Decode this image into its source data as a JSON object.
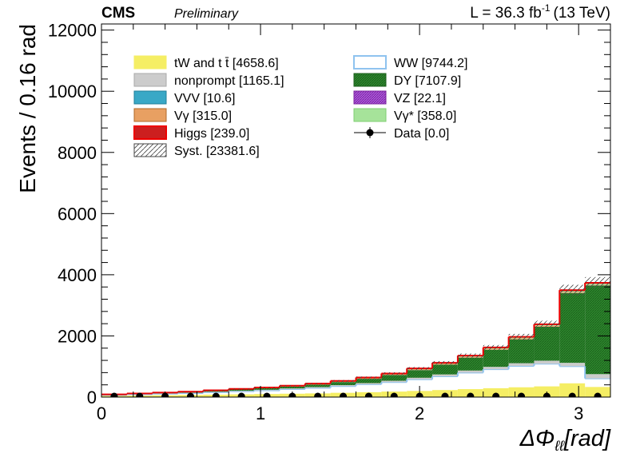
{
  "header": {
    "experiment": "CMS",
    "status": "Preliminary",
    "lumi_text": "L = 36.3 fb",
    "lumi_sup": "-1",
    "energy": "(13 TeV)"
  },
  "chart_data": {
    "type": "stacked-histogram",
    "xlabel_main": "ΔΦ",
    "xlabel_sub": "ℓℓ",
    "xlabel_unit": "[rad]",
    "ylabel": "Events / 0.16 rad",
    "xlim": [
      0,
      3.2
    ],
    "ylim": [
      0,
      12200
    ],
    "xticks": [
      0,
      1,
      2,
      3
    ],
    "yticks": [
      0,
      2000,
      4000,
      6000,
      8000,
      10000,
      12000
    ],
    "bin_edges": [
      0,
      0.16,
      0.32,
      0.48,
      0.64,
      0.8,
      0.96,
      1.12,
      1.28,
      1.44,
      1.6,
      1.76,
      1.92,
      2.08,
      2.24,
      2.4,
      2.56,
      2.72,
      2.88,
      3.04,
      3.2
    ],
    "series": [
      {
        "name": "tW and t t̄ [4658.6]",
        "key": "top",
        "fill": "#f5ee64",
        "stroke": "#f5ee64",
        "pattern": "none",
        "values": [
          40,
          50,
          60,
          70,
          80,
          90,
          100,
          110,
          120,
          140,
          160,
          180,
          200,
          230,
          260,
          290,
          320,
          350,
          450,
          330
        ]
      },
      {
        "name": "WW [9744.2]",
        "key": "ww",
        "fill": "none",
        "stroke": "#8fc3ef",
        "pattern": "none",
        "values": [
          30,
          40,
          50,
          60,
          80,
          100,
          120,
          150,
          180,
          220,
          260,
          310,
          380,
          450,
          540,
          620,
          700,
          740,
          560,
          280
        ]
      },
      {
        "name": "nonprompt [1165.1]",
        "key": "nonprompt",
        "fill": "#cccccc",
        "stroke": "#aaaaaa",
        "pattern": "none",
        "values": [
          5,
          8,
          10,
          12,
          15,
          18,
          20,
          24,
          28,
          32,
          38,
          44,
          52,
          60,
          68,
          78,
          88,
          100,
          110,
          140
        ]
      },
      {
        "name": "DY [7107.9]",
        "key": "dy",
        "fill": "#2f8a2f",
        "stroke": "#1b5e1b",
        "pattern": "dense",
        "values": [
          5,
          10,
          15,
          20,
          30,
          40,
          50,
          60,
          80,
          100,
          140,
          190,
          250,
          320,
          420,
          560,
          780,
          1110,
          2280,
          2900
        ]
      },
      {
        "name": "VVV [10.6]",
        "key": "vvv",
        "fill": "#39a8c6",
        "stroke": "#1f7f9a",
        "pattern": "none",
        "values": [
          0.2,
          0.2,
          0.3,
          0.3,
          0.4,
          0.4,
          0.5,
          0.5,
          0.5,
          0.6,
          0.6,
          0.6,
          0.6,
          0.6,
          0.6,
          0.6,
          0.6,
          0.6,
          0.6,
          0.6
        ]
      },
      {
        "name": "VZ [22.1]",
        "key": "vz",
        "fill": "#a040d0",
        "stroke": "#7a209e",
        "pattern": "dense",
        "values": [
          0.4,
          0.5,
          0.6,
          0.7,
          0.8,
          0.9,
          1,
          1,
          1.1,
          1.1,
          1.2,
          1.2,
          1.3,
          1.3,
          1.4,
          1.4,
          1.4,
          1.4,
          1.5,
          1.5
        ]
      },
      {
        "name": "Vγ [315.0]",
        "key": "vg",
        "fill": "#e8a062",
        "stroke": "#b06a2a",
        "pattern": "none",
        "values": [
          2,
          3,
          4,
          5,
          6,
          7,
          8,
          10,
          11,
          13,
          15,
          17,
          20,
          23,
          26,
          29,
          31,
          30,
          20,
          15
        ]
      },
      {
        "name": "Vγ* [358.0]",
        "key": "vgs",
        "fill": "#a6e39a",
        "stroke": "#7fcf72",
        "pattern": "none",
        "values": [
          3,
          4,
          5,
          6,
          7,
          8,
          9,
          11,
          12,
          14,
          16,
          18,
          21,
          24,
          27,
          30,
          32,
          32,
          40,
          39
        ]
      },
      {
        "name": "Higgs [239.0]",
        "key": "higgs",
        "fill": "#cc1f1f",
        "stroke": "#ee0000",
        "pattern": "none",
        "values": [
          2,
          2,
          3,
          3,
          4,
          4,
          5,
          6,
          7,
          8,
          9,
          10,
          11,
          12,
          13,
          14,
          15,
          16,
          35,
          30
        ]
      }
    ],
    "systematics": {
      "name": "Syst. [23381.6]",
      "fraction": 0.05
    },
    "data": {
      "name": "Data [0.0]",
      "values": [
        0,
        0,
        0,
        0,
        0,
        0,
        0,
        0,
        0,
        0,
        0,
        0,
        0,
        0,
        0,
        0,
        0,
        0,
        0,
        0
      ]
    },
    "legend": {
      "placement": "top-left",
      "left_column": [
        "top",
        "nonprompt",
        "vvv",
        "vg",
        "higgs",
        "syst"
      ],
      "right_column": [
        "ww",
        "dy",
        "vz",
        "vgs",
        "data"
      ]
    }
  }
}
